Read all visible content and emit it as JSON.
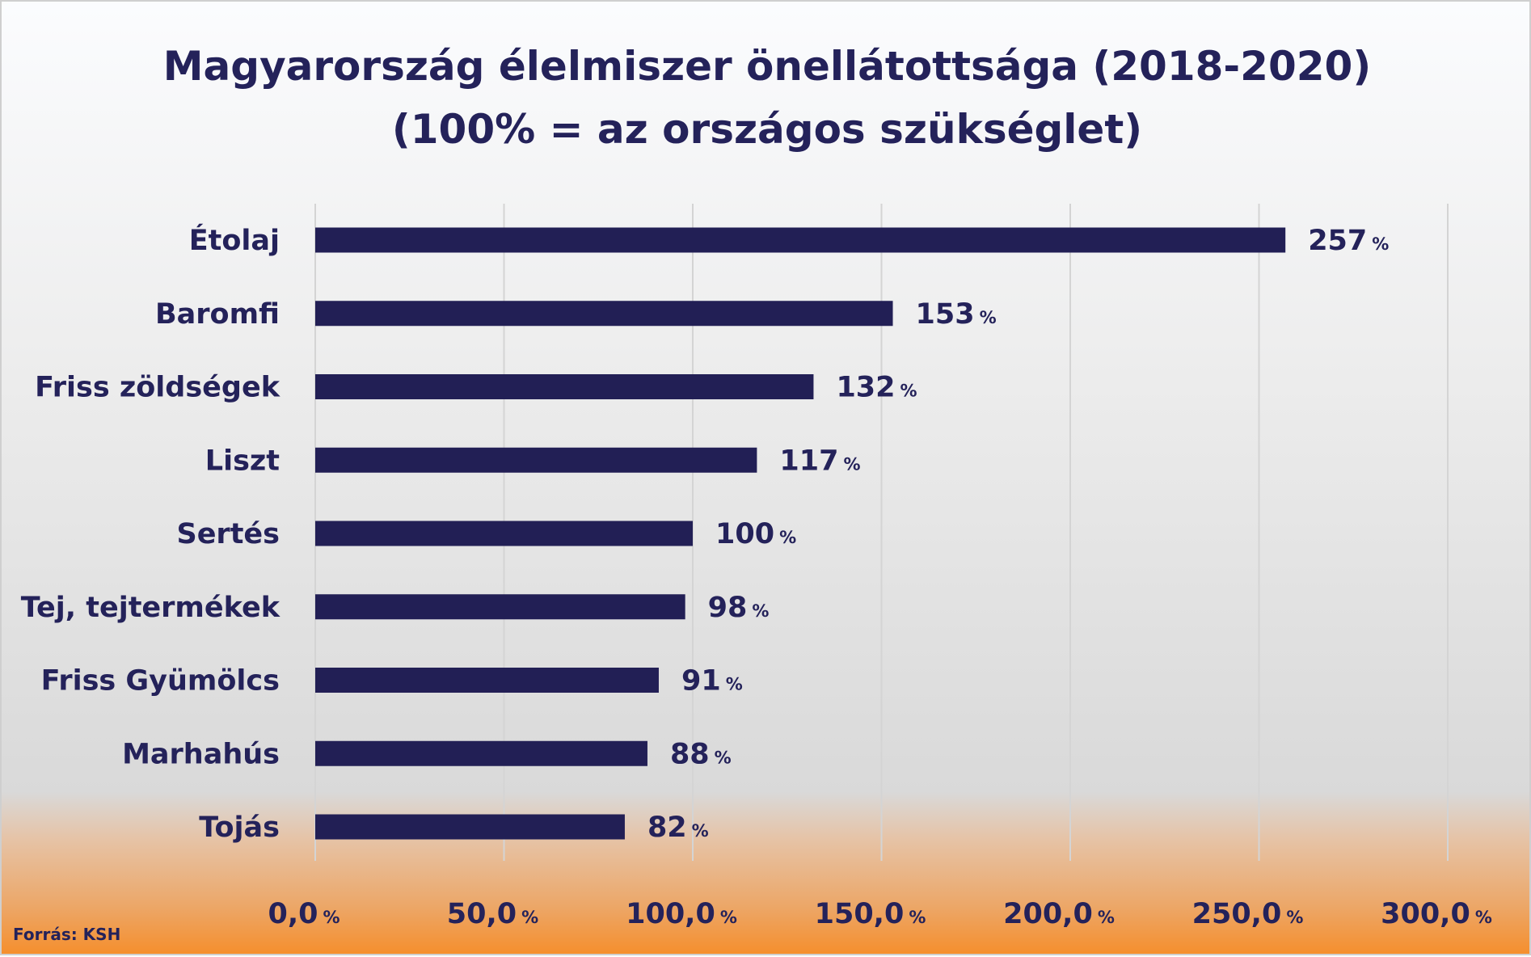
{
  "chart_data": {
    "type": "bar",
    "orientation": "horizontal",
    "title": "Magyarország élelmiszer önellátottsága (2018-2020)",
    "subtitle": "(100% = az országos szükséglet)",
    "categories": [
      "Étolaj",
      "Baromfi",
      "Friss zöldségek",
      "Liszt",
      "Sertés",
      "Tej, tejtermékek",
      "Friss Gyümölcs",
      "Marhahús",
      "Tojás"
    ],
    "values": [
      257,
      153,
      132,
      117,
      100,
      98,
      91,
      88,
      82
    ],
    "value_suffix": "%",
    "xlim": [
      0,
      300
    ],
    "xticks": [
      0,
      50,
      100,
      150,
      200,
      250,
      300
    ],
    "xtick_labels": [
      "0,0",
      "50,0",
      "100,0",
      "150,0",
      "200,0",
      "250,0",
      "300,0"
    ],
    "xlabel": "",
    "ylabel": "",
    "grid": true,
    "legend": "none",
    "bar_color": "#221f55",
    "source": "Forrás: KSH"
  }
}
